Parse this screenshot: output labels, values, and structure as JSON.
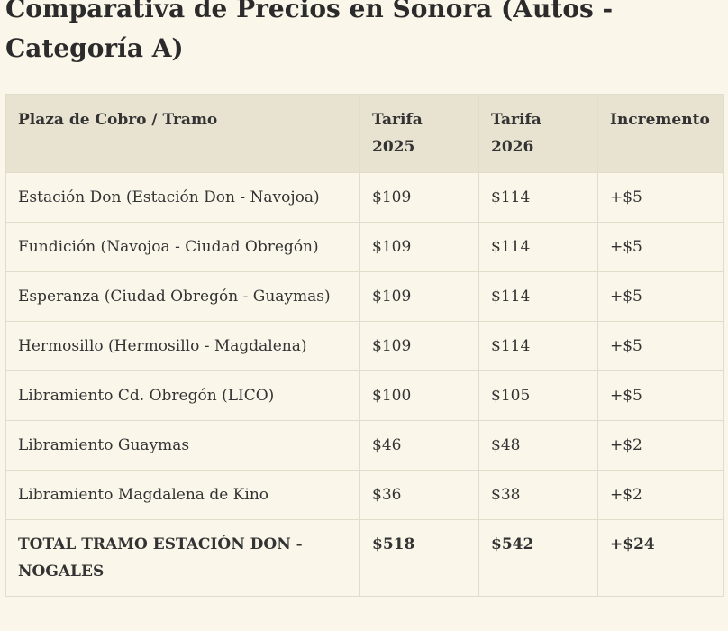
{
  "title": "Comparativa de Precios en Sonora (Autos - Categoría A)",
  "table": {
    "header": [
      "Plaza de Cobro / Tramo",
      "Tarifa 2025",
      "Tarifa 2026",
      "Incremento"
    ],
    "rows": [
      [
        "Estación Don (Estación Don - Navojoa)",
        "$109",
        "$114",
        "+$5"
      ],
      [
        "Fundición (Navojoa - Ciudad Obregón)",
        "$109",
        "$114",
        "+$5"
      ],
      [
        "Esperanza (Ciudad Obregón - Guaymas)",
        "$109",
        "$114",
        "+$5"
      ],
      [
        "Hermosillo (Hermosillo - Magdalena)",
        "$109",
        "$114",
        "+$5"
      ],
      [
        "Libramiento Cd. Obregón (LICO)",
        "$100",
        "$105",
        "+$5"
      ],
      [
        "Libramiento Guaymas",
        "$46",
        "$48",
        "+$2"
      ],
      [
        "Libramiento Magdalena de Kino",
        "$36",
        "$38",
        "+$2"
      ]
    ],
    "total": [
      "TOTAL TRAMO ESTACIÓN DON - NOGALES",
      "$518",
      "$542",
      "+$24"
    ]
  }
}
